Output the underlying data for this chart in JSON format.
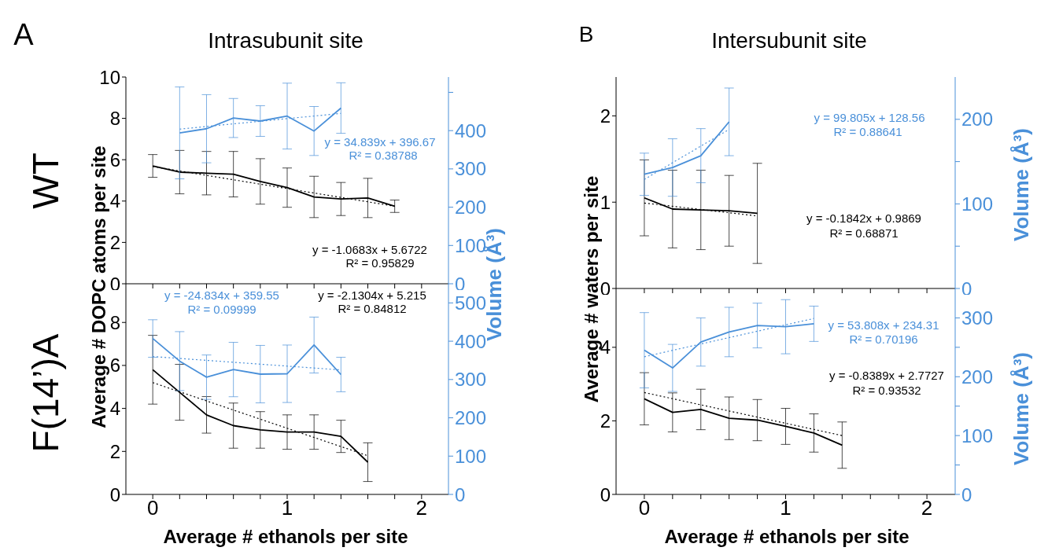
{
  "chart_data": [
    {
      "type": "line",
      "title": "Intrasubunit site",
      "ylabel": "Average # DOPC atoms per site",
      "y2label": "Volume (Å³)",
      "tick_labels": "y",
      "xlim": [
        -0.2,
        2.2
      ],
      "xticks": [
        {
          "value": 0,
          "label": null
        },
        {
          "value": 0.2,
          "label": null
        },
        {
          "value": 0.4,
          "label": null
        },
        {
          "value": 0.6,
          "label": null
        },
        {
          "value": 0.8,
          "label": null
        },
        {
          "value": 1,
          "label": null
        },
        {
          "value": 1.2,
          "label": null
        },
        {
          "value": 1.4,
          "label": null
        },
        {
          "value": 1.6,
          "label": null
        },
        {
          "value": 1.8,
          "label": null
        },
        {
          "value": 2,
          "label": null
        }
      ],
      "ylim": [
        0,
        10
      ],
      "yticks": [
        0,
        2,
        4,
        6,
        8,
        10
      ],
      "y2lim": [
        0,
        540
      ],
      "y2ticks": [
        0,
        100,
        200,
        300,
        400,
        {
          "value": 500,
          "label": null
        }
      ],
      "annotations": [
        "A",
        "WT",
        "y = 34.839x + 396.67",
        "R² = 0.38788",
        "y = -1.0683x + 5.6722",
        "R² = 0.95829"
      ],
      "series": [
        {
          "color": "#000000",
          "line_style": "solid",
          "x": [
            0,
            0.2,
            0.4,
            0.6,
            0.8,
            1,
            1.2,
            1.4,
            1.6,
            1.8
          ],
          "values": [
            5.7,
            5.4,
            5.35,
            5.3,
            4.95,
            4.65,
            4.2,
            4.1,
            4.15,
            3.75
          ],
          "errors": [
            0.55,
            1.05,
            1.05,
            1.1,
            1.1,
            0.95,
            1.0,
            0.8,
            0.95,
            0.3
          ]
        },
        {
          "color": "#4a90d9",
          "axis": "y2",
          "line_style": "solid",
          "x": [
            0.2,
            0.4,
            0.6,
            0.8,
            1,
            1.2,
            1.4
          ],
          "values": [
            394,
            405,
            433,
            425,
            438,
            399,
            459
          ],
          "errors": [
            120,
            89,
            51,
            40,
            86,
            64,
            66
          ]
        },
        {
          "color": "#000000",
          "line_style": "dotted",
          "x": [
            0,
            1.8
          ],
          "values": [
            5.67,
            3.75
          ]
        },
        {
          "color": "#4a90d9",
          "axis": "y2",
          "line_style": "dotted",
          "x": [
            0.2,
            1.4
          ],
          "values": [
            404,
            445
          ]
        }
      ]
    },
    {
      "type": "line",
      "xlabel": "Average # ethanols per site",
      "xlim": [
        -0.2,
        2.2
      ],
      "xticks": [
        0,
        {
          "value": 0.2,
          "label": null
        },
        {
          "value": 0.4,
          "label": null
        },
        {
          "value": 0.6,
          "label": null
        },
        {
          "value": 0.8,
          "label": null
        },
        1,
        {
          "value": 1.2,
          "label": null
        },
        {
          "value": 1.4,
          "label": null
        },
        {
          "value": 1.6,
          "label": null
        },
        {
          "value": 1.8,
          "label": null
        },
        2
      ],
      "ylim": [
        0,
        9.8
      ],
      "yticks": [
        0,
        2,
        4,
        6,
        8
      ],
      "y2lim": [
        0,
        550
      ],
      "y2ticks": [
        0,
        100,
        200,
        300,
        400,
        500
      ],
      "annotations": [
        "F(14’)A",
        "y = -24.834x + 359.55",
        "R² = 0.09999",
        "y = -2.1304x + 5.215",
        "R² = 0.84812"
      ],
      "series": [
        {
          "color": "#000000",
          "line_style": "solid",
          "x": [
            0,
            0.2,
            0.4,
            0.6,
            0.8,
            1,
            1.2,
            1.4,
            1.6
          ],
          "values": [
            5.8,
            4.75,
            3.7,
            3.2,
            3.0,
            2.9,
            2.9,
            2.7,
            1.5
          ],
          "errors": [
            1.6,
            1.3,
            0.85,
            1.05,
            0.85,
            0.8,
            0.8,
            0.75,
            0.9
          ]
        },
        {
          "color": "#4a90d9",
          "axis": "y2",
          "line_style": "solid",
          "x": [
            0,
            0.2,
            0.4,
            0.6,
            0.8,
            1,
            1.2,
            1.4
          ],
          "values": [
            407,
            348,
            306,
            326,
            314,
            315,
            390,
            313
          ],
          "errors": [
            49,
            77,
            58,
            71,
            75,
            75,
            73,
            45
          ]
        },
        {
          "color": "#000000",
          "line_style": "dotted",
          "x": [
            0,
            1.6
          ],
          "values": [
            5.2,
            1.8
          ]
        },
        {
          "color": "#4a90d9",
          "axis": "y2",
          "line_style": "dotted",
          "x": [
            0,
            1.4
          ],
          "values": [
            360,
            325
          ]
        }
      ]
    },
    {
      "type": "line",
      "title": "Intersubunit site",
      "ylabel": "Average # waters per site",
      "y2label": "Volume (Å³)",
      "tick_labels": "y",
      "xlim": [
        -0.2,
        2.2
      ],
      "xticks": [
        {
          "value": 0,
          "label": null
        },
        {
          "value": 0.2,
          "label": null
        },
        {
          "value": 0.4,
          "label": null
        },
        {
          "value": 0.6,
          "label": null
        },
        {
          "value": 0.8,
          "label": null
        },
        {
          "value": 1,
          "label": null
        },
        {
          "value": 1.2,
          "label": null
        },
        {
          "value": 1.4,
          "label": null
        },
        {
          "value": 1.6,
          "label": null
        },
        {
          "value": 1.8,
          "label": null
        },
        {
          "value": 2,
          "label": null
        }
      ],
      "ylim": [
        0,
        2.45
      ],
      "yticks": [
        0,
        1,
        2
      ],
      "y2lim": [
        0,
        250
      ],
      "y2ticks": [
        0,
        {
          "value": 50,
          "label": null
        },
        100,
        {
          "value": 150,
          "label": null
        },
        200
      ],
      "annotations": [
        "B",
        "y = 99.805x + 128.56",
        "R² = 0.88641",
        "y = -0.1842x + 0.9869",
        "R² = 0.68871"
      ],
      "series": [
        {
          "color": "#000000",
          "line_style": "solid",
          "x": [
            0,
            0.2,
            0.4,
            0.6,
            0.8
          ],
          "values": [
            1.05,
            0.92,
            0.91,
            0.9,
            0.87
          ],
          "errors": [
            0.44,
            0.45,
            0.46,
            0.41,
            0.58
          ]
        },
        {
          "color": "#4a90d9",
          "axis": "y2",
          "line_style": "solid",
          "x": [
            0,
            0.2,
            0.4,
            0.6
          ],
          "values": [
            135,
            143,
            157,
            197
          ],
          "errors": [
            25,
            34,
            32,
            40
          ]
        },
        {
          "color": "#000000",
          "line_style": "dotted",
          "x": [
            0,
            0.8
          ],
          "values": [
            0.99,
            0.84
          ]
        },
        {
          "color": "#4a90d9",
          "axis": "y2",
          "line_style": "dotted",
          "x": [
            0,
            0.6
          ],
          "values": [
            129,
            188
          ]
        }
      ]
    },
    {
      "type": "line",
      "xlabel": "Average # ethanols per site",
      "y2label": "Volume (Å³)",
      "xlim": [
        -0.2,
        2.2
      ],
      "xticks": [
        0,
        {
          "value": 0.2,
          "label": null
        },
        {
          "value": 0.4,
          "label": null
        },
        {
          "value": 0.6,
          "label": null
        },
        {
          "value": 0.8,
          "label": null
        },
        1,
        {
          "value": 1.2,
          "label": null
        },
        {
          "value": 1.4,
          "label": null
        },
        {
          "value": 1.6,
          "label": null
        },
        {
          "value": 1.8,
          "label": null
        },
        2
      ],
      "ylim": [
        0,
        5.6
      ],
      "yticks": [
        0,
        2,
        4
      ],
      "y2lim": [
        0,
        350
      ],
      "y2ticks": [
        0,
        {
          "value": 50,
          "label": null
        },
        100,
        {
          "value": 150,
          "label": null
        },
        200,
        {
          "value": 250,
          "label": null
        },
        300
      ],
      "annotations": [
        "y = 53.808x + 234.31",
        "R² = 0.70196",
        "y = -0.8389x + 2.7727",
        "R² = 0.93532"
      ],
      "series": [
        {
          "color": "#000000",
          "line_style": "solid",
          "x": [
            0,
            0.2,
            0.4,
            0.6,
            0.8,
            1,
            1.2,
            1.4
          ],
          "values": [
            2.6,
            2.23,
            2.31,
            2.07,
            2.02,
            1.85,
            1.67,
            1.34
          ],
          "errors": [
            0.71,
            0.53,
            0.55,
            0.58,
            0.56,
            0.49,
            0.52,
            0.63
          ]
        },
        {
          "color": "#4a90d9",
          "axis": "y2",
          "line_style": "solid",
          "x": [
            0,
            0.2,
            0.4,
            0.6,
            0.8,
            1,
            1.2
          ],
          "values": [
            245,
            215,
            259,
            276,
            287,
            285,
            290
          ],
          "errors": [
            64,
            40,
            41,
            42,
            38,
            46,
            30
          ]
        },
        {
          "color": "#000000",
          "line_style": "dotted",
          "x": [
            0,
            1.4
          ],
          "values": [
            2.77,
            1.6
          ]
        },
        {
          "color": "#4a90d9",
          "axis": "y2",
          "line_style": "dotted",
          "x": [
            0,
            1.2
          ],
          "values": [
            234,
            299
          ]
        }
      ]
    }
  ]
}
